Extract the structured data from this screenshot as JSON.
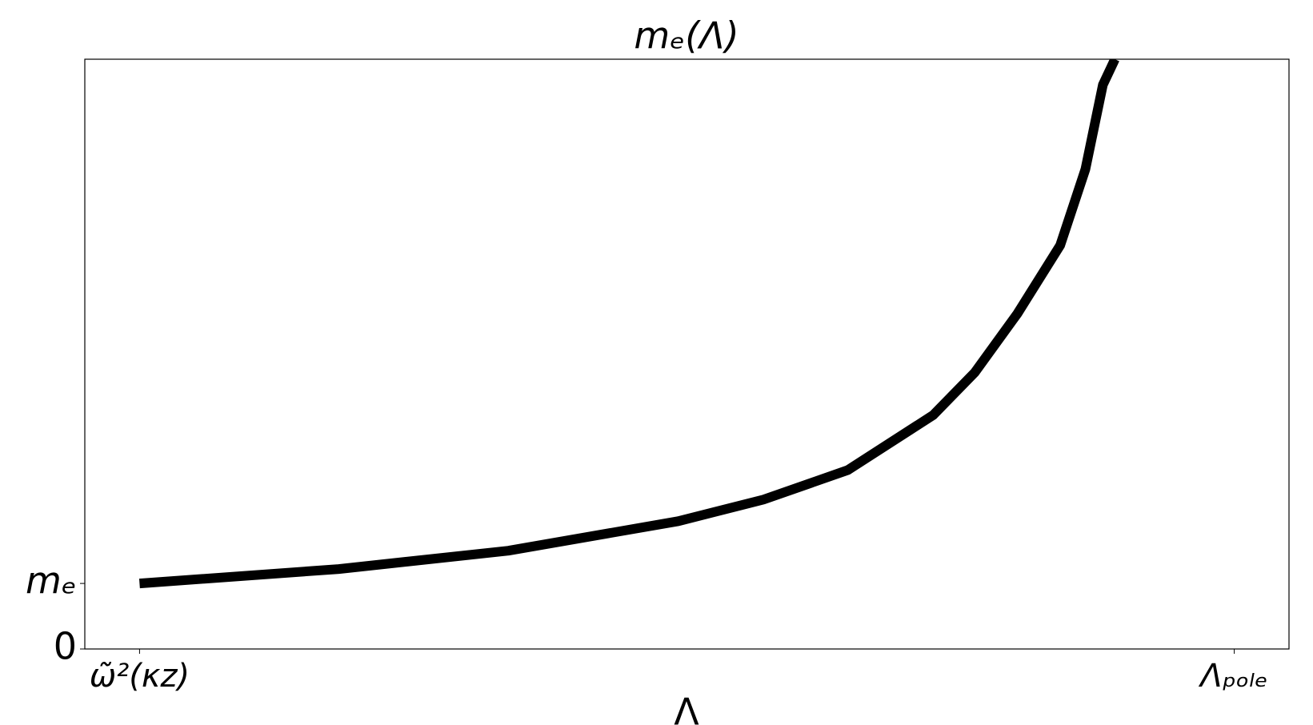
{
  "chart_data": {
    "type": "line",
    "title": "mₑ(Λ)",
    "xlabel": "Λ",
    "x": [
      0,
      0.182,
      0.337,
      0.492,
      0.57,
      0.647,
      0.725,
      0.763,
      0.802,
      0.841,
      0.864,
      0.88,
      0.891
    ],
    "series": [
      {
        "color": "#000000",
        "values": [
          1.0,
          1.22,
          1.5,
          1.95,
          2.28,
          2.73,
          3.57,
          4.22,
          5.12,
          6.16,
          7.32,
          8.61,
          9.0
        ]
      }
    ],
    "xlim": [
      -0.05,
      1.05
    ],
    "xticks": [
      {
        "value": 0,
        "label": "ω̃²(κz)"
      },
      {
        "value": 1,
        "label": "Λₚₒₗₑ"
      }
    ],
    "ylim": [
      0,
      9
    ],
    "yticks": [
      0,
      {
        "value": 1,
        "label": "mₑ"
      }
    ],
    "grid": false
  }
}
